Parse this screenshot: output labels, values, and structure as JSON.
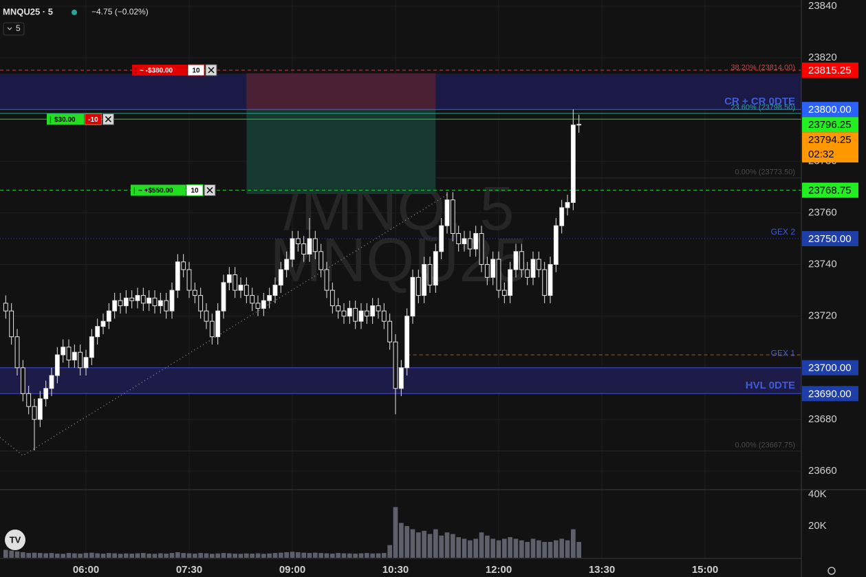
{
  "chart_data": {
    "type": "candlestick",
    "symbol": "MNQU25 · 5",
    "change": "−4.75 (−0.02%)",
    "interval": "5",
    "watermark": [
      "/MNQ, 5",
      "MNQU25"
    ],
    "x": [
      "04:50",
      "04:55",
      "05:00",
      "05:05",
      "05:10",
      "05:15",
      "05:20",
      "05:25",
      "05:30",
      "05:35",
      "05:40",
      "05:45",
      "05:50",
      "05:55",
      "06:00",
      "06:05",
      "06:10",
      "06:15",
      "06:20",
      "06:25",
      "06:30",
      "06:35",
      "06:40",
      "06:45",
      "06:50",
      "06:55",
      "07:00",
      "07:05",
      "07:10",
      "07:15",
      "07:20",
      "07:25",
      "07:30",
      "07:35",
      "07:40",
      "07:45",
      "07:50",
      "07:55",
      "08:00",
      "08:05",
      "08:10",
      "08:15",
      "08:20",
      "08:25",
      "08:30",
      "08:35",
      "08:40",
      "08:45",
      "08:50",
      "08:55",
      "09:00",
      "09:05",
      "09:10",
      "09:15",
      "09:20",
      "09:25",
      "09:30",
      "09:35",
      "09:40",
      "09:45",
      "09:50",
      "09:55",
      "10:00",
      "10:05",
      "10:10",
      "10:15",
      "10:20",
      "10:25",
      "10:30",
      "10:35",
      "10:40",
      "10:45",
      "10:50",
      "10:55",
      "11:00",
      "11:05",
      "11:10",
      "11:15",
      "11:20",
      "11:25",
      "11:30",
      "11:35",
      "11:40",
      "11:45",
      "11:50",
      "11:55",
      "12:00",
      "12:05",
      "12:10",
      "12:15",
      "12:20",
      "12:25",
      "12:30",
      "12:35",
      "12:40",
      "12:45",
      "12:50",
      "12:55",
      "13:00",
      "13:05",
      "13:10"
    ],
    "open": [
      23725,
      23722,
      23712,
      23700,
      23690,
      23685,
      23680,
      23688,
      23692,
      23697,
      23705,
      23708,
      23703,
      23706,
      23700,
      23704,
      23712,
      23716,
      23718,
      23722,
      23726,
      23724,
      23727,
      23726,
      23728,
      23725,
      23727,
      23724,
      23726,
      23722,
      23730,
      23741,
      23738,
      23730,
      23728,
      23722,
      23718,
      23712,
      23722,
      23733,
      23736,
      23730,
      23732,
      23728,
      23725,
      23723,
      23726,
      23728,
      23732,
      23738,
      23742,
      23750,
      23748,
      23744,
      23750,
      23745,
      23738,
      23730,
      23724,
      23722,
      23720,
      23723,
      23718,
      23722,
      23720,
      23724,
      23722,
      23718,
      23710,
      23692,
      23700,
      23720,
      23735,
      23728,
      23740,
      23732,
      23745,
      23755,
      23765,
      23752,
      23748,
      23750,
      23746,
      23752,
      23740,
      23735,
      23742,
      23730,
      23728,
      23738,
      23745,
      23738,
      23735,
      23742,
      23738,
      23728,
      23740,
      23755,
      23762,
      23764,
      23794
    ],
    "high": [
      23728,
      23725,
      23715,
      23703,
      23693,
      23688,
      23691,
      23695,
      23700,
      23708,
      23711,
      23711,
      23709,
      23709,
      23707,
      23715,
      23719,
      23721,
      23725,
      23729,
      23729,
      23730,
      23730,
      23731,
      23731,
      23730,
      23730,
      23729,
      23729,
      23733,
      23744,
      23744,
      23741,
      23733,
      23731,
      23725,
      23721,
      23725,
      23736,
      23739,
      23739,
      23735,
      23735,
      23731,
      23728,
      23729,
      23731,
      23735,
      23741,
      23745,
      23753,
      23753,
      23751,
      23758,
      23753,
      23748,
      23741,
      23733,
      23727,
      23725,
      23726,
      23726,
      23725,
      23725,
      23727,
      23727,
      23725,
      23721,
      23713,
      23703,
      23723,
      23738,
      23738,
      23743,
      23743,
      23748,
      23758,
      23768,
      23768,
      23755,
      23753,
      23753,
      23755,
      23755,
      23743,
      23745,
      23745,
      23733,
      23741,
      23748,
      23748,
      23741,
      23745,
      23745,
      23741,
      23743,
      23758,
      23765,
      23767,
      23800,
      23798
    ],
    "low": [
      23719,
      23709,
      23697,
      23687,
      23682,
      23668,
      23677,
      23685,
      23689,
      23694,
      23702,
      23700,
      23700,
      23697,
      23697,
      23701,
      23709,
      23713,
      23715,
      23719,
      23721,
      23721,
      23723,
      23723,
      23722,
      23722,
      23721,
      23721,
      23719,
      23719,
      23727,
      23735,
      23727,
      23725,
      23719,
      23715,
      23709,
      23709,
      23719,
      23730,
      23727,
      23727,
      23725,
      23722,
      23720,
      23720,
      23723,
      23725,
      23729,
      23735,
      23739,
      23745,
      23741,
      23741,
      23742,
      23735,
      23727,
      23721,
      23719,
      23717,
      23717,
      23715,
      23715,
      23717,
      23717,
      23719,
      23715,
      23707,
      23682,
      23689,
      23697,
      23717,
      23725,
      23725,
      23729,
      23729,
      23742,
      23752,
      23749,
      23745,
      23745,
      23743,
      23743,
      23737,
      23732,
      23732,
      23727,
      23725,
      23725,
      23735,
      23735,
      23732,
      23732,
      23735,
      23725,
      23725,
      23737,
      23752,
      23759,
      23761,
      23791
    ],
    "close": [
      23722,
      23712,
      23700,
      23690,
      23685,
      23680,
      23688,
      23692,
      23697,
      23705,
      23708,
      23703,
      23706,
      23700,
      23704,
      23712,
      23716,
      23718,
      23722,
      23726,
      23724,
      23727,
      23726,
      23728,
      23725,
      23727,
      23724,
      23726,
      23722,
      23730,
      23741,
      23738,
      23730,
      23728,
      23722,
      23718,
      23712,
      23722,
      23733,
      23736,
      23730,
      23732,
      23728,
      23725,
      23723,
      23726,
      23728,
      23732,
      23738,
      23742,
      23750,
      23748,
      23744,
      23750,
      23745,
      23738,
      23730,
      23724,
      23722,
      23720,
      23723,
      23718,
      23722,
      23720,
      23724,
      23722,
      23718,
      23710,
      23692,
      23700,
      23720,
      23735,
      23728,
      23740,
      23732,
      23745,
      23755,
      23765,
      23752,
      23748,
      23750,
      23746,
      23752,
      23740,
      23735,
      23742,
      23730,
      23728,
      23738,
      23745,
      23738,
      23735,
      23742,
      23738,
      23728,
      23740,
      23755,
      23762,
      23764,
      23794,
      23794.25
    ],
    "up_color": "#ffffff",
    "down_color": "#111111",
    "xlim": [
      "04:45",
      "16:24"
    ],
    "xticks": [
      "06:00",
      "07:30",
      "09:00",
      "10:30",
      "12:00",
      "13:30",
      "15:00"
    ],
    "ylim": [
      23652.8,
      23842.4
    ],
    "yticks": [
      23660,
      23680,
      23700,
      23720,
      23740,
      23760,
      23780,
      23800,
      23820,
      23840
    ],
    "grid": true,
    "volume": {
      "values": [
        5000,
        4500,
        4000,
        3500,
        3000,
        3200,
        3000,
        2800,
        3000,
        2600,
        2500,
        3000,
        2800,
        2600,
        3000,
        3200,
        2800,
        2600,
        3000,
        2800,
        2500,
        2700,
        2600,
        2800,
        3000,
        2600,
        2500,
        2800,
        2600,
        3000,
        3500,
        3000,
        2800,
        2600,
        3000,
        2800,
        2500,
        2700,
        3000,
        2800,
        2600,
        2500,
        2700,
        2600,
        2800,
        2500,
        2700,
        3000,
        3200,
        3500,
        3800,
        3500,
        3200,
        3000,
        3200,
        3000,
        2800,
        2600,
        3000,
        2800,
        2700,
        2600,
        2800,
        3000,
        2700,
        2800,
        3000,
        8000,
        32000,
        22000,
        20000,
        18000,
        16000,
        17000,
        15000,
        18000,
        14000,
        16000,
        15000,
        13000,
        12000,
        11000,
        12000,
        16000,
        14000,
        12000,
        11000,
        12000,
        13000,
        12000,
        11000,
        10000,
        12000,
        11000,
        10000,
        10000,
        11000,
        12000,
        11000,
        18000,
        10000
      ],
      "color": "#5d606b",
      "ylim": [
        0,
        43000
      ],
      "yticks": [
        {
          "value": 40000,
          "label": "40K"
        },
        {
          "value": 20000,
          "label": "20K"
        }
      ]
    },
    "zones": [
      {
        "from": 23813.9,
        "to": 23800,
        "color": "#1b1a46"
      },
      {
        "from": 23700,
        "to": 23690,
        "color": "#1d1c48"
      }
    ],
    "position": {
      "from": "08:20",
      "to": "11:05",
      "stop": 23814,
      "entry": 23800,
      "target": 23767.3,
      "stop_color": "#4a2035",
      "target_color": "#17382f"
    },
    "levels": [
      {
        "value": 23815.25,
        "color": "#e53935",
        "style": "dashed"
      },
      {
        "value": 23800,
        "color": "#3d5afe",
        "style": "solid"
      },
      {
        "value": 23798.5,
        "color": "#26a69a",
        "style": "solid"
      },
      {
        "value": 23796.25,
        "color": "#2ecc40",
        "style": "solid"
      },
      {
        "value": 23768.75,
        "color": "#2ecc40",
        "style": "dashed"
      },
      {
        "value": 23773.5,
        "color": "#2a2a2a",
        "style": "solid",
        "from": "11:05"
      },
      {
        "value": 23750,
        "color": "#2f44b0",
        "style": "dotted"
      },
      {
        "value": 23705,
        "color": "#a0622a",
        "style": "dashed",
        "from": "10:40"
      },
      {
        "value": 23700,
        "color": "#3d4fd8",
        "style": "solid"
      },
      {
        "value": 23690,
        "color": "#3d4fd8",
        "style": "solid"
      },
      {
        "value": 23667.75,
        "color": "#2a2a2a",
        "style": "solid"
      }
    ],
    "level_labels": [
      {
        "text": "CR + CR 0DTE",
        "value": 23800,
        "color": "#3f5bd8",
        "size": 15
      },
      {
        "text": "GEX 2",
        "value": 23750,
        "color": "#3f5bd8",
        "size": 12
      },
      {
        "text": "GEX 1",
        "value": 23703,
        "color": "#3f5bd8",
        "size": 12
      },
      {
        "text": "HVL 0DTE",
        "value": 23690,
        "color": "#3f5bd8",
        "size": 15
      },
      {
        "text": "38.20% (23814.00)",
        "value": 23814,
        "color": "#c0474a",
        "size": 11
      },
      {
        "text": "23.60% (23798.50)",
        "value": 23798.5,
        "color": "#26a69a",
        "size": 11
      },
      {
        "text": "0.00% (23773.50)",
        "value": 23773.5,
        "color": "#4a4a4a",
        "size": 11
      },
      {
        "text": "0.00% (23667.75)",
        "value": 23667.75,
        "color": "#4a4a4a",
        "size": 11
      }
    ],
    "orders": [
      {
        "value": 23815.25,
        "pnl": "~ -$380.00",
        "qty": "10",
        "pnl_color": "#e00000",
        "qty_color": "#ffffff"
      },
      {
        "value": 23796.25,
        "pnl": "$30.00",
        "qty": "-10",
        "pnl_color": "#22dd22",
        "qty_color": "#e00000"
      },
      {
        "value": 23768.75,
        "pnl": "~ +$550.00",
        "qty": "10",
        "pnl_color": "#22dd22",
        "qty_color": "#ffffff"
      }
    ],
    "trendline": {
      "x": [
        "04:45",
        "05:05",
        "11:15"
      ],
      "y": [
        23673,
        23666,
        23767
      ]
    },
    "price_tags": [
      {
        "value": 23815.25,
        "label": "23815.25",
        "color": "#ff0000"
      },
      {
        "value": 23800,
        "label": "23800.00",
        "color": "#2962ff"
      },
      {
        "value": 23796.25,
        "label": "23796.25",
        "color": "#22ee22"
      },
      {
        "value": 23794.25,
        "label": "23794.25",
        "color": "#ff9800",
        "countdown": "02:32"
      },
      {
        "value": 23768.75,
        "label": "23768.75",
        "color": "#22ee22"
      },
      {
        "value": 23750,
        "label": "23750.00",
        "color": "#1e3fa8"
      },
      {
        "value": 23700,
        "label": "23700.00",
        "color": "#1e3fa8"
      },
      {
        "value": 23690,
        "label": "23690.00",
        "color": "#1e3fa8"
      }
    ]
  }
}
